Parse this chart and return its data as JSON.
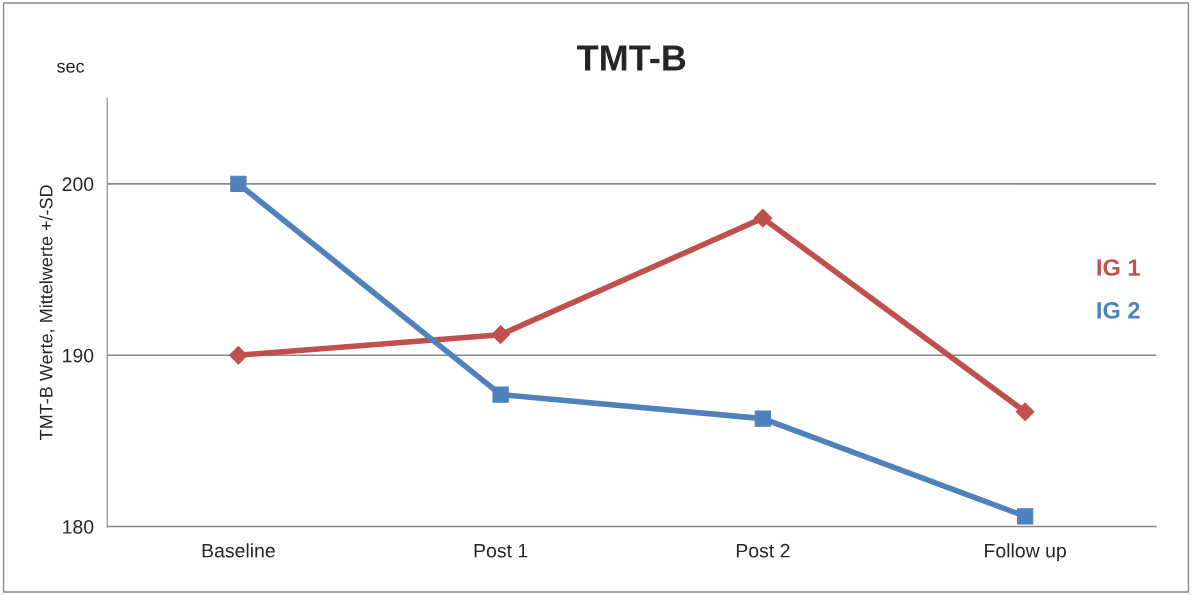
{
  "chart_data": {
    "type": "line",
    "title": "TMT-B",
    "ylabel": "TMT-B Werte, Mittelwerte +/-SD",
    "annotations": [
      "sec"
    ],
    "categories": [
      "Baseline",
      "Post 1",
      "Post 2",
      "Follow up"
    ],
    "series": [
      {
        "name": "IG 1",
        "color": "#c0504d",
        "marker": "diamond",
        "values": [
          190,
          191.2,
          198.0,
          186.7
        ]
      },
      {
        "name": "IG 2",
        "color": "#4f81bd",
        "marker": "square",
        "values": [
          200,
          187.7,
          186.3,
          180.6
        ]
      }
    ],
    "ylim": [
      180,
      205
    ],
    "yticks": [
      180,
      190,
      200
    ],
    "grid": "y",
    "legend": "right",
    "line_style": "solid"
  }
}
